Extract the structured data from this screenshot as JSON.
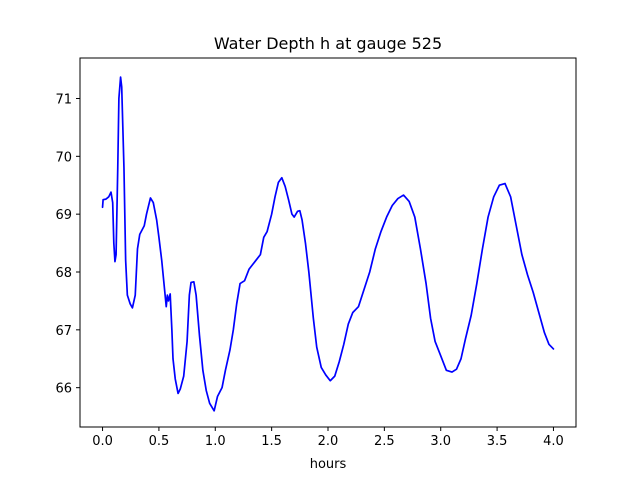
{
  "chart_data": {
    "type": "line",
    "title": "Water Depth h at gauge 525",
    "xlabel": "hours",
    "ylabel": "",
    "xlim": [
      -0.2,
      4.2
    ],
    "ylim": [
      65.32,
      71.7
    ],
    "xticks": [
      {
        "value": 0.0,
        "label": "0.0"
      },
      {
        "value": 0.5,
        "label": "0.5"
      },
      {
        "value": 1.0,
        "label": "1.0"
      },
      {
        "value": 1.5,
        "label": "1.5"
      },
      {
        "value": 2.0,
        "label": "2.0"
      },
      {
        "value": 2.5,
        "label": "2.5"
      },
      {
        "value": 3.0,
        "label": "3.0"
      },
      {
        "value": 3.5,
        "label": "3.5"
      },
      {
        "value": 4.0,
        "label": "4.0"
      }
    ],
    "yticks": [
      {
        "value": 66,
        "label": "66"
      },
      {
        "value": 67,
        "label": "67"
      },
      {
        "value": 68,
        "label": "68"
      },
      {
        "value": 69,
        "label": "69"
      },
      {
        "value": 70,
        "label": "70"
      },
      {
        "value": 71,
        "label": "71"
      }
    ],
    "grid": false,
    "series": [
      {
        "color": "#0000ff",
        "points": [
          [
            0.0,
            69.12
          ],
          [
            0.005,
            69.25
          ],
          [
            0.03,
            69.26
          ],
          [
            0.055,
            69.3
          ],
          [
            0.075,
            69.38
          ],
          [
            0.09,
            69.2
          ],
          [
            0.1,
            68.5
          ],
          [
            0.11,
            68.18
          ],
          [
            0.12,
            68.3
          ],
          [
            0.135,
            69.8
          ],
          [
            0.145,
            71.0
          ],
          [
            0.16,
            71.37
          ],
          [
            0.17,
            71.2
          ],
          [
            0.19,
            69.8
          ],
          [
            0.205,
            68.2
          ],
          [
            0.22,
            67.6
          ],
          [
            0.245,
            67.45
          ],
          [
            0.265,
            67.38
          ],
          [
            0.29,
            67.6
          ],
          [
            0.31,
            68.4
          ],
          [
            0.33,
            68.65
          ],
          [
            0.37,
            68.8
          ],
          [
            0.39,
            69.0
          ],
          [
            0.425,
            69.28
          ],
          [
            0.45,
            69.2
          ],
          [
            0.48,
            68.9
          ],
          [
            0.5,
            68.6
          ],
          [
            0.525,
            68.2
          ],
          [
            0.545,
            67.8
          ],
          [
            0.565,
            67.4
          ],
          [
            0.575,
            67.6
          ],
          [
            0.585,
            67.5
          ],
          [
            0.6,
            67.62
          ],
          [
            0.615,
            67.0
          ],
          [
            0.625,
            66.5
          ],
          [
            0.645,
            66.15
          ],
          [
            0.67,
            65.9
          ],
          [
            0.69,
            65.98
          ],
          [
            0.72,
            66.2
          ],
          [
            0.75,
            66.8
          ],
          [
            0.77,
            67.6
          ],
          [
            0.785,
            67.82
          ],
          [
            0.81,
            67.83
          ],
          [
            0.83,
            67.6
          ],
          [
            0.86,
            66.9
          ],
          [
            0.89,
            66.3
          ],
          [
            0.92,
            65.95
          ],
          [
            0.95,
            65.73
          ],
          [
            0.99,
            65.6
          ],
          [
            1.02,
            65.85
          ],
          [
            1.06,
            66.0
          ],
          [
            1.09,
            66.3
          ],
          [
            1.13,
            66.65
          ],
          [
            1.16,
            67.0
          ],
          [
            1.19,
            67.45
          ],
          [
            1.22,
            67.8
          ],
          [
            1.26,
            67.85
          ],
          [
            1.3,
            68.05
          ],
          [
            1.36,
            68.2
          ],
          [
            1.4,
            68.3
          ],
          [
            1.43,
            68.6
          ],
          [
            1.46,
            68.7
          ],
          [
            1.5,
            69.0
          ],
          [
            1.53,
            69.3
          ],
          [
            1.56,
            69.55
          ],
          [
            1.59,
            69.63
          ],
          [
            1.62,
            69.48
          ],
          [
            1.65,
            69.25
          ],
          [
            1.68,
            69.0
          ],
          [
            1.7,
            68.95
          ],
          [
            1.73,
            69.05
          ],
          [
            1.75,
            69.06
          ],
          [
            1.77,
            68.9
          ],
          [
            1.8,
            68.5
          ],
          [
            1.83,
            68.0
          ],
          [
            1.87,
            67.2
          ],
          [
            1.9,
            66.7
          ],
          [
            1.94,
            66.35
          ],
          [
            1.98,
            66.22
          ],
          [
            2.02,
            66.12
          ],
          [
            2.06,
            66.2
          ],
          [
            2.1,
            66.45
          ],
          [
            2.14,
            66.75
          ],
          [
            2.18,
            67.1
          ],
          [
            2.22,
            67.3
          ],
          [
            2.27,
            67.4
          ],
          [
            2.32,
            67.7
          ],
          [
            2.37,
            68.0
          ],
          [
            2.42,
            68.4
          ],
          [
            2.47,
            68.7
          ],
          [
            2.52,
            68.95
          ],
          [
            2.57,
            69.15
          ],
          [
            2.62,
            69.27
          ],
          [
            2.67,
            69.33
          ],
          [
            2.72,
            69.22
          ],
          [
            2.77,
            68.95
          ],
          [
            2.82,
            68.4
          ],
          [
            2.87,
            67.8
          ],
          [
            2.91,
            67.2
          ],
          [
            2.95,
            66.8
          ],
          [
            3.0,
            66.55
          ],
          [
            3.05,
            66.3
          ],
          [
            3.1,
            66.27
          ],
          [
            3.14,
            66.32
          ],
          [
            3.18,
            66.5
          ],
          [
            3.22,
            66.85
          ],
          [
            3.27,
            67.25
          ],
          [
            3.32,
            67.8
          ],
          [
            3.37,
            68.4
          ],
          [
            3.42,
            68.95
          ],
          [
            3.47,
            69.3
          ],
          [
            3.52,
            69.5
          ],
          [
            3.57,
            69.53
          ],
          [
            3.62,
            69.3
          ],
          [
            3.67,
            68.8
          ],
          [
            3.72,
            68.3
          ],
          [
            3.77,
            67.95
          ],
          [
            3.82,
            67.65
          ],
          [
            3.87,
            67.3
          ],
          [
            3.92,
            66.95
          ],
          [
            3.96,
            66.75
          ],
          [
            4.0,
            66.67
          ]
        ]
      }
    ]
  }
}
